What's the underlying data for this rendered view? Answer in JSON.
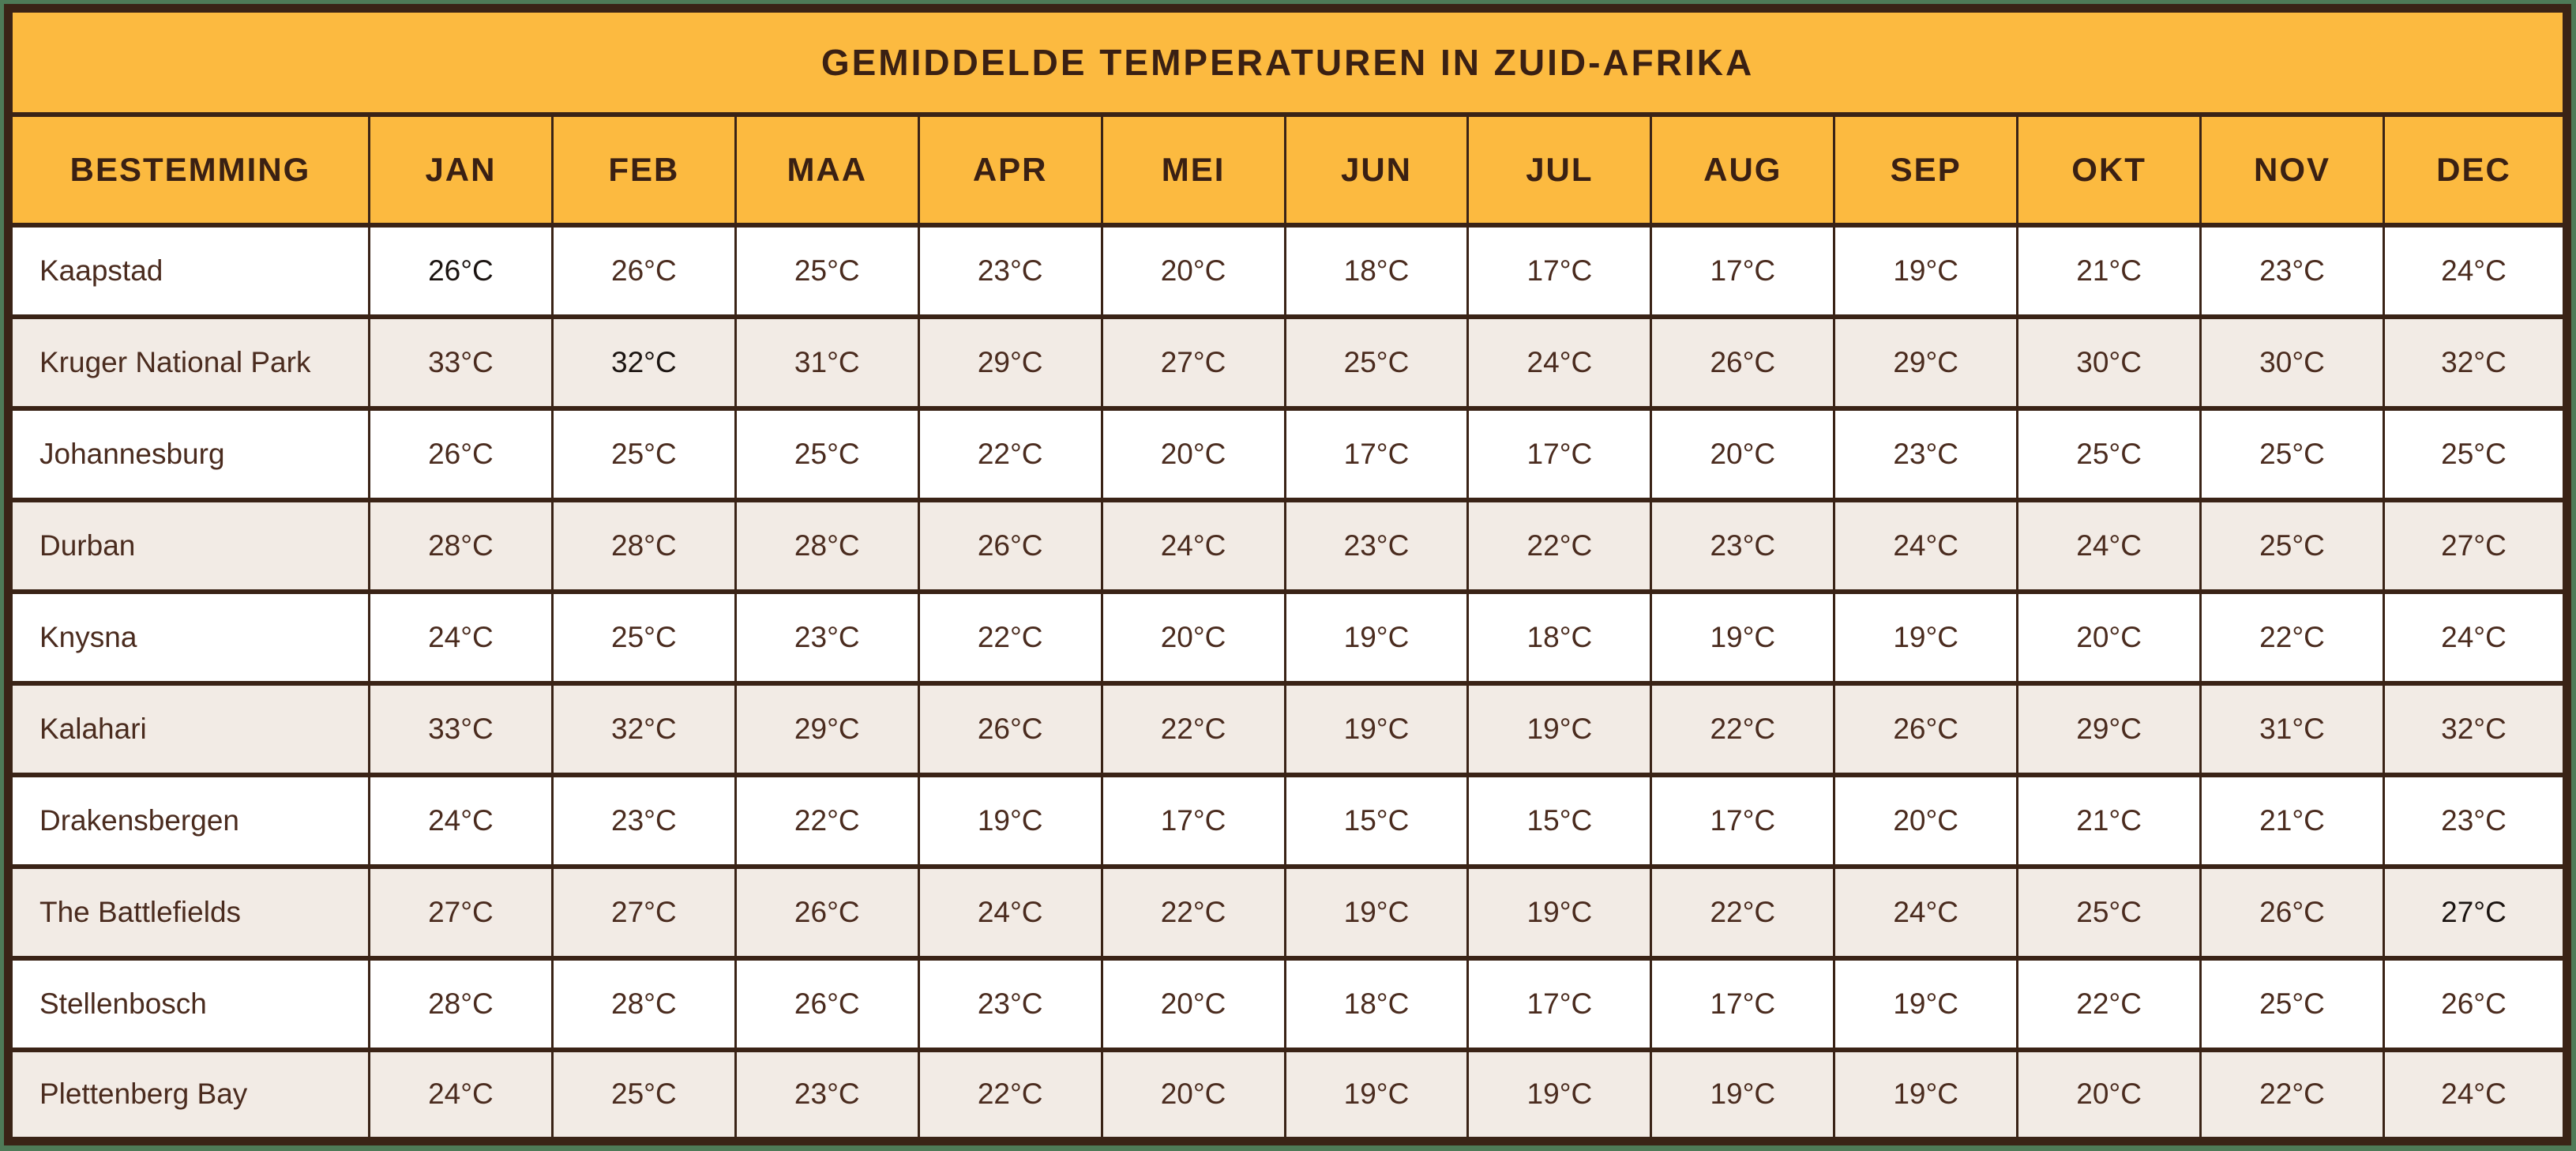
{
  "page": {
    "title": "GEMIDDELDE TEMPERATUREN IN ZUID-AFRIKA"
  },
  "chart_data": {
    "type": "table",
    "title": "GEMIDDELDE TEMPERATUREN IN ZUID-AFRIKA",
    "unit": "°C",
    "destination_column_header": "BESTEMMING",
    "month_headers": [
      "JAN",
      "FEB",
      "MAA",
      "APR",
      "MEI",
      "JUN",
      "JUL",
      "AUG",
      "SEP",
      "OKT",
      "NOV",
      "DEC"
    ],
    "rows": [
      {
        "destination": "Kaapstad",
        "temperatures_c": [
          26,
          26,
          25,
          23,
          20,
          18,
          17,
          17,
          19,
          21,
          23,
          24
        ]
      },
      {
        "destination": "Kruger National Park",
        "temperatures_c": [
          33,
          32,
          31,
          29,
          27,
          25,
          24,
          26,
          29,
          30,
          30,
          32
        ]
      },
      {
        "destination": "Johannesburg",
        "temperatures_c": [
          26,
          25,
          25,
          22,
          20,
          17,
          17,
          20,
          23,
          25,
          25,
          25
        ]
      },
      {
        "destination": "Durban",
        "temperatures_c": [
          28,
          28,
          28,
          26,
          24,
          23,
          22,
          23,
          24,
          24,
          25,
          27
        ]
      },
      {
        "destination": "Knysna",
        "temperatures_c": [
          24,
          25,
          23,
          22,
          20,
          19,
          18,
          19,
          19,
          20,
          22,
          24
        ]
      },
      {
        "destination": "Kalahari",
        "temperatures_c": [
          33,
          32,
          29,
          26,
          22,
          19,
          19,
          22,
          26,
          29,
          31,
          32
        ]
      },
      {
        "destination": "Drakensbergen",
        "temperatures_c": [
          24,
          23,
          22,
          19,
          17,
          15,
          15,
          17,
          20,
          21,
          21,
          23
        ]
      },
      {
        "destination": "The Battlefields",
        "temperatures_c": [
          27,
          27,
          26,
          24,
          22,
          19,
          19,
          22,
          24,
          25,
          26,
          27
        ]
      },
      {
        "destination": "Stellenbosch",
        "temperatures_c": [
          28,
          28,
          26,
          23,
          20,
          18,
          17,
          17,
          19,
          22,
          25,
          26
        ]
      },
      {
        "destination": "Plettenberg Bay",
        "temperatures_c": [
          24,
          25,
          23,
          22,
          20,
          19,
          19,
          19,
          19,
          20,
          22,
          24
        ]
      }
    ],
    "emphasized_cells": [
      {
        "row": 0,
        "col": 0
      },
      {
        "row": 1,
        "col": 1
      },
      {
        "row": 7,
        "col": 11
      }
    ],
    "layout": {
      "grid": "on",
      "row_striping": [
        "white",
        "beige"
      ]
    }
  },
  "colors": {
    "header-orange": "#fcba40",
    "border-brown": "#3a2316",
    "row-beige": "#f2ebe5",
    "row-white": "#ffffff",
    "frame-green": "#4e7a57",
    "text-brown": "#4a2b1e",
    "text-heading": "#3a2013",
    "text-dark": "#1b1411"
  }
}
